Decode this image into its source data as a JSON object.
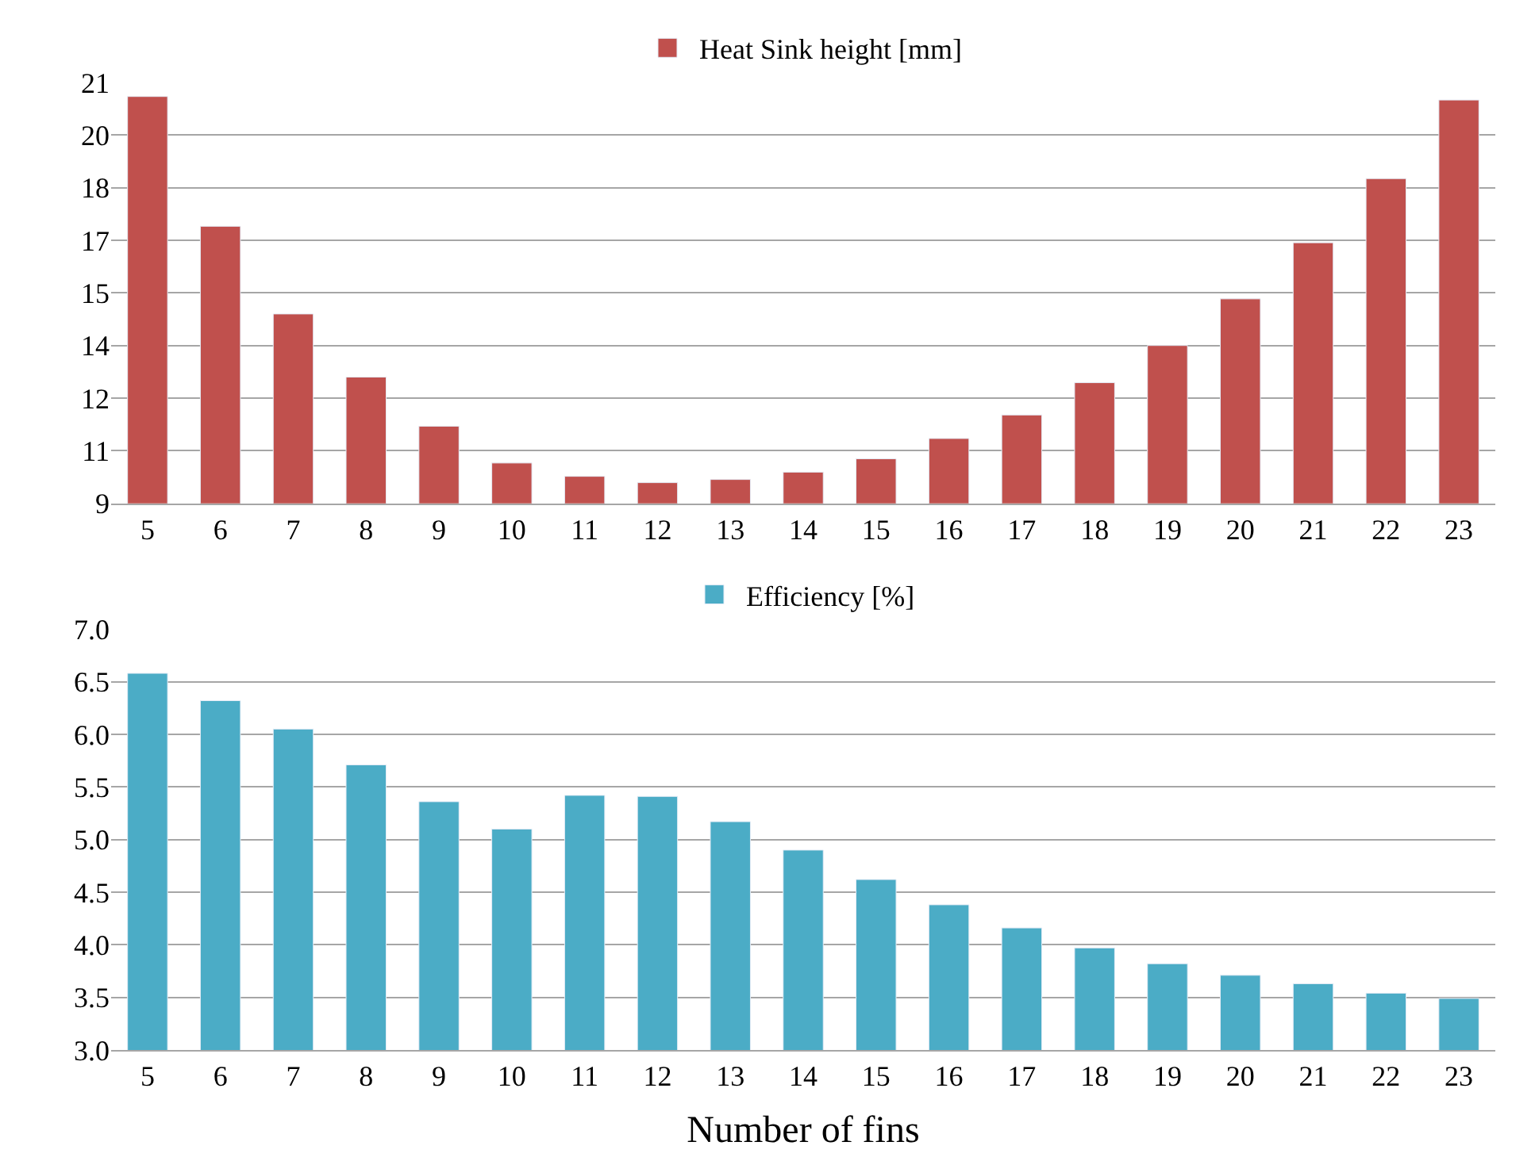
{
  "chart_data": [
    {
      "type": "bar",
      "categories": [
        "5",
        "6",
        "7",
        "8",
        "9",
        "10",
        "11",
        "12",
        "13",
        "14",
        "15",
        "16",
        "17",
        "18",
        "19",
        "20",
        "21",
        "22",
        "23"
      ],
      "series": [
        {
          "name": "Heat Sink height [mm]",
          "color": "#c0504d",
          "values": [
            20.6,
            16.9,
            14.4,
            12.6,
            11.2,
            10.15,
            9.77,
            9.59,
            9.68,
            9.89,
            10.27,
            10.85,
            11.52,
            12.44,
            13.5,
            14.83,
            16.43,
            18.26,
            20.5
          ]
        }
      ],
      "ylim": [
        9,
        21
      ],
      "yticks": [
        9,
        {
          "value": 10.5,
          "label": "11"
        },
        12,
        {
          "value": 13.5,
          "label": "14"
        },
        15,
        {
          "value": 16.5,
          "label": "17"
        },
        18,
        {
          "value": 19.5,
          "label": "20"
        },
        21
      ],
      "grid": "y",
      "legend": "top"
    },
    {
      "type": "bar",
      "categories": [
        "5",
        "6",
        "7",
        "8",
        "9",
        "10",
        "11",
        "12",
        "13",
        "14",
        "15",
        "16",
        "17",
        "18",
        "19",
        "20",
        "21",
        "22",
        "23"
      ],
      "series": [
        {
          "name": "Efficiency [%]",
          "color": "#4bacc6",
          "values": [
            6.58,
            6.32,
            6.05,
            5.71,
            5.36,
            5.1,
            5.42,
            5.41,
            5.17,
            4.9,
            4.62,
            4.38,
            4.16,
            3.97,
            3.82,
            3.71,
            3.63,
            3.54,
            3.49
          ]
        }
      ],
      "xlabel": "Number of fins",
      "ylim": [
        3,
        7
      ],
      "yticks": [
        {
          "value": 3,
          "label": "3.0"
        },
        3.5,
        {
          "value": 4,
          "label": "4.0"
        },
        4.5,
        {
          "value": 5,
          "label": "5.0"
        },
        5.5,
        {
          "value": 6,
          "label": "6.0"
        },
        6.5,
        {
          "value": 7,
          "label": "7.0"
        }
      ],
      "grid": "y",
      "legend": "top"
    }
  ]
}
